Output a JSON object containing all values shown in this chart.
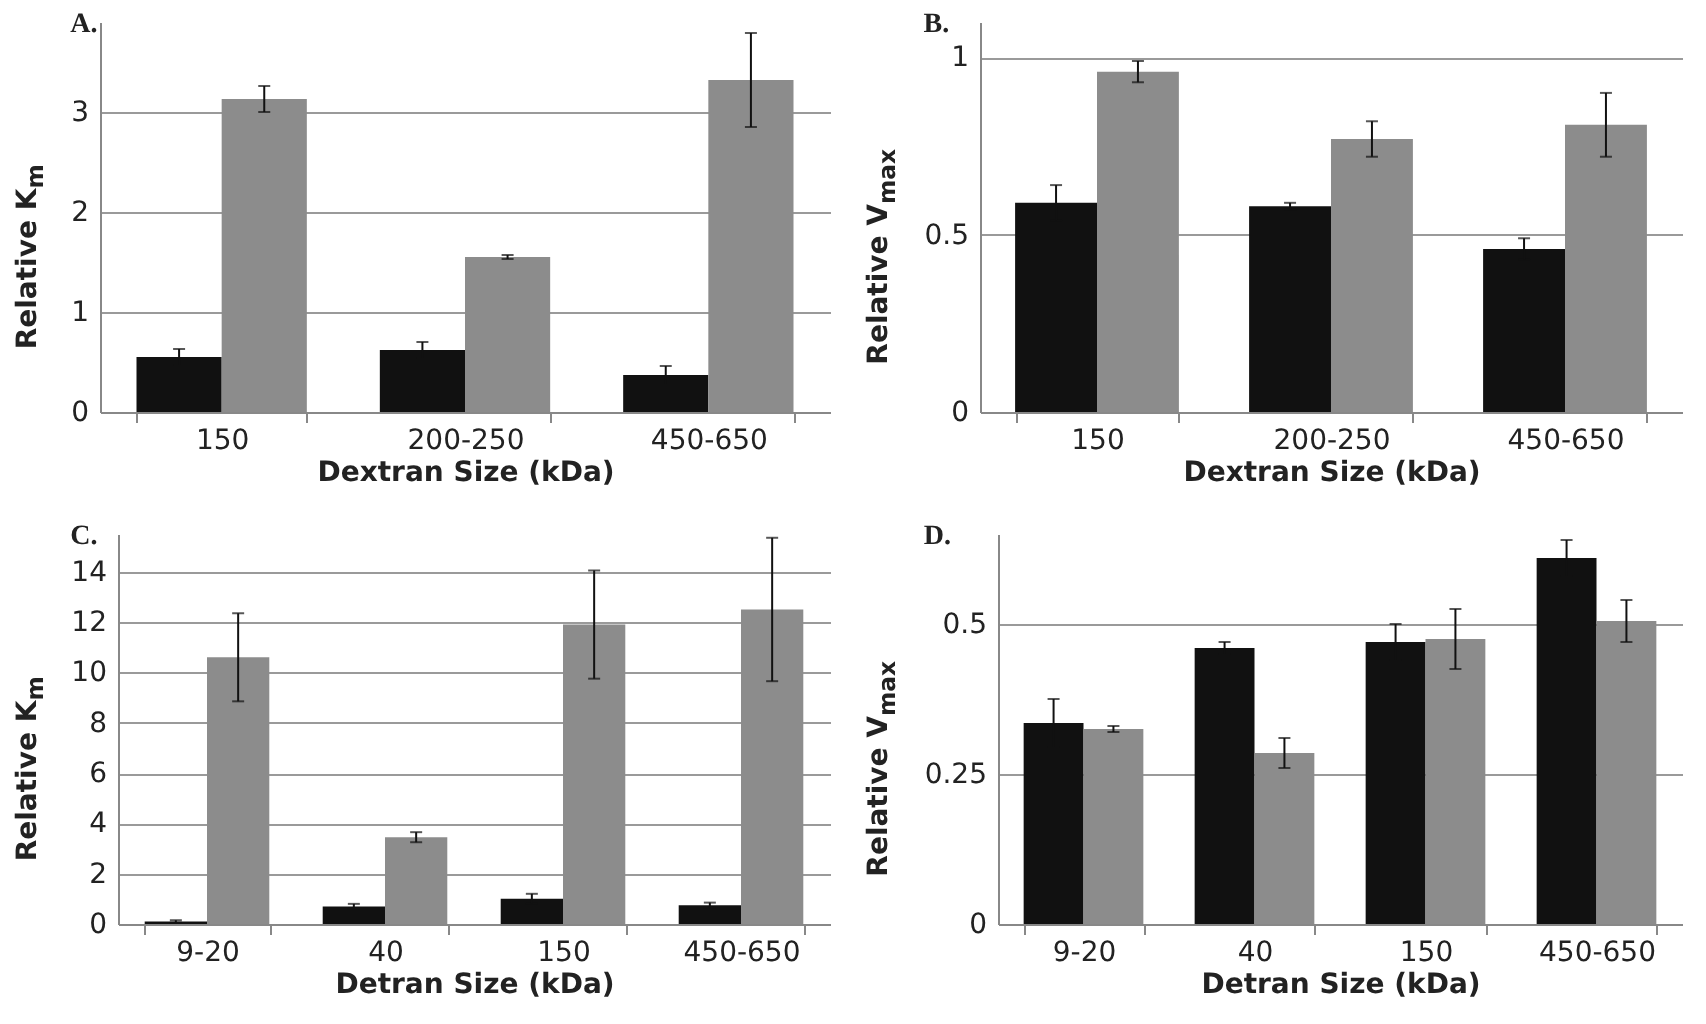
{
  "chart_data": [
    {
      "type": "bar",
      "title": "A.",
      "xlabel": "Dextran Size (kDa)",
      "ylabel": "Relative K$_{m}$",
      "categories": [
        "150",
        "200-250",
        "450-650"
      ],
      "ylim": [
        0,
        3.9
      ],
      "yticks": [
        0,
        1,
        2,
        3
      ],
      "grid": "y",
      "series": [
        {
          "color": "#111111",
          "values": [
            0.55,
            0.62,
            0.37
          ],
          "errors": [
            0.08,
            0.08,
            0.09
          ]
        },
        {
          "color": "#8c8c8c",
          "values": [
            3.13,
            1.55,
            3.32
          ],
          "errors": [
            0.13,
            0.02,
            0.47
          ]
        }
      ]
    },
    {
      "type": "bar",
      "title": "B.",
      "xlabel": "Dextran Size (kDa)",
      "ylabel": "Relative V$_{max}$",
      "categories": [
        "150",
        "200-250",
        "450-650"
      ],
      "ylim": [
        0,
        1.1
      ],
      "yticks": [
        0,
        0.5,
        1
      ],
      "grid": "y",
      "series": [
        {
          "color": "#111111",
          "values": [
            0.59,
            0.58,
            0.46
          ],
          "errors": [
            0.05,
            0.01,
            0.03
          ]
        },
        {
          "color": "#8c8c8c",
          "values": [
            0.96,
            0.77,
            0.81
          ],
          "errors": [
            0.03,
            0.05,
            0.09
          ]
        }
      ]
    },
    {
      "type": "bar",
      "title": "C.",
      "xlabel": "Detran Size (kDa)",
      "ylabel": "Relative K$_{m}$",
      "categories": [
        "9-20",
        "40",
        "150",
        "450-650"
      ],
      "ylim": [
        0,
        15.5
      ],
      "yticks": [
        0,
        2,
        4,
        6,
        8,
        10,
        12,
        14
      ],
      "grid": "y",
      "series": [
        {
          "color": "#111111",
          "values": [
            0.1,
            0.7,
            1.0,
            0.75
          ],
          "errors": [
            0.05,
            0.1,
            0.2,
            0.1
          ]
        },
        {
          "color": "#8c8c8c",
          "values": [
            10.6,
            3.45,
            11.9,
            12.5
          ],
          "errors": [
            1.75,
            0.2,
            2.15,
            2.85
          ]
        }
      ]
    },
    {
      "type": "bar",
      "title": "D.",
      "xlabel": "Detran Size (kDa)",
      "ylabel": "Relative V$_{max}$",
      "categories": [
        "9-20",
        "40",
        "150",
        "450-650"
      ],
      "ylim": [
        0,
        0.65
      ],
      "yticks": [
        0,
        0.25,
        0.5
      ],
      "grid": "y",
      "series": [
        {
          "color": "#111111",
          "values": [
            0.335,
            0.46,
            0.47,
            0.61
          ],
          "errors": [
            0.04,
            0.01,
            0.03,
            0.03
          ]
        },
        {
          "color": "#8c8c8c",
          "values": [
            0.325,
            0.285,
            0.475,
            0.505
          ],
          "errors": [
            0.005,
            0.025,
            0.05,
            0.035
          ]
        }
      ]
    }
  ]
}
